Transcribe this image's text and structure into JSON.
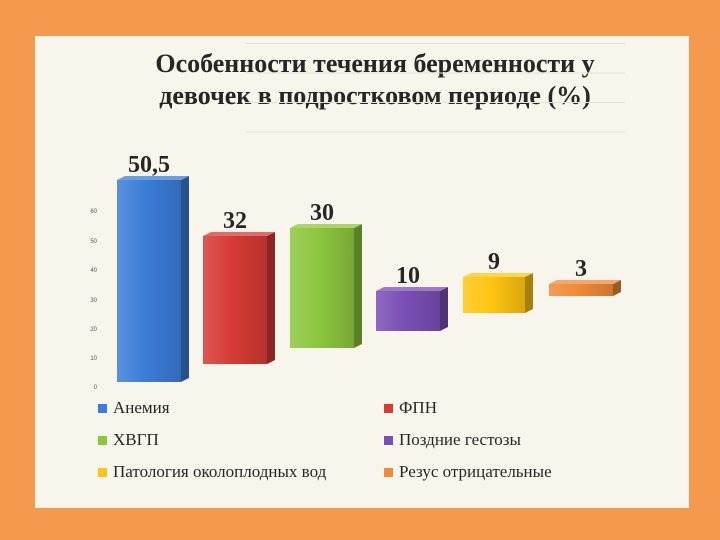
{
  "chart_data": {
    "type": "bar",
    "title": "Особенности течения беременности у девочек в подростковом периоде (%)",
    "title_lines": [
      "Особенности течения беременности у",
      "девочек в подростковом периоде (%)"
    ],
    "xlabel": "",
    "ylabel": "",
    "ylim": [
      0,
      60
    ],
    "yticks": [
      "0",
      "10",
      "20",
      "30",
      "40",
      "50",
      "60"
    ],
    "grid": true,
    "legend_position": "bottom",
    "series": [
      {
        "name": "Анемия",
        "value": 50.5,
        "label": "50,5",
        "color": "#3B7DD8"
      },
      {
        "name": "ФПН",
        "value": 32,
        "label": "32",
        "color": "#D63B35"
      },
      {
        "name": "ХВГП",
        "value": 30,
        "label": "30",
        "color": "#8CC63E"
      },
      {
        "name": "Поздние гестозы",
        "value": 10,
        "label": "10",
        "color": "#7A4FB5"
      },
      {
        "name": "Патология околоплодных вод",
        "value": 9,
        "label": "9",
        "color": "#FFC512"
      },
      {
        "name": "Резус отрицательные",
        "value": 3,
        "label": "3",
        "color": "#F08A3A"
      }
    ]
  }
}
